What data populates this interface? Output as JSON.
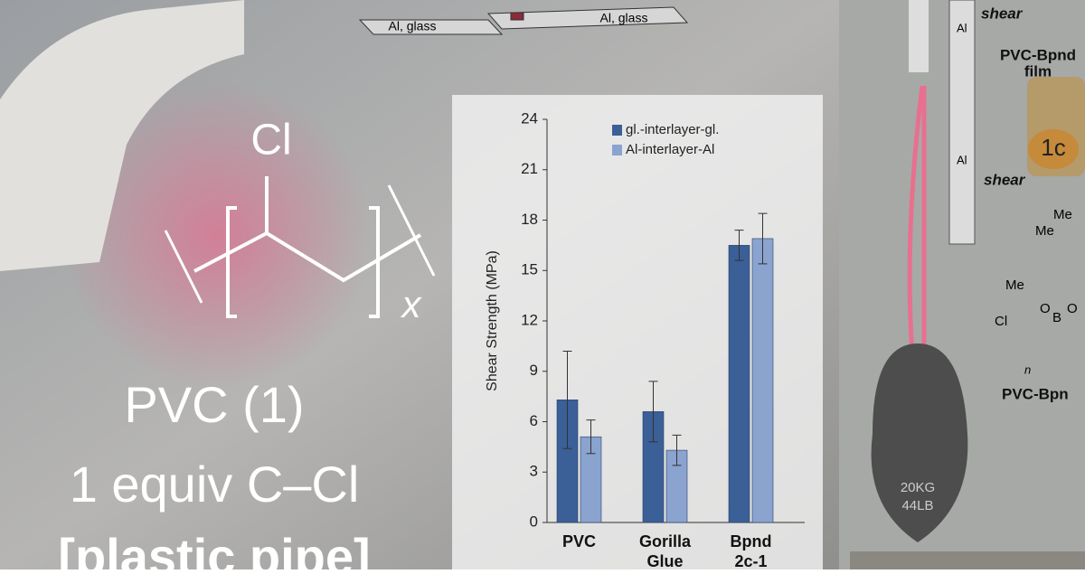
{
  "header": {
    "left_plate": "Al, glass",
    "right_plate": "Al, glass"
  },
  "structure": {
    "atom": "Cl",
    "repeat": "x",
    "name": "PVC (1)",
    "equiv": "1 equiv C–Cl",
    "use": "[plastic pipe]"
  },
  "chart_data": {
    "type": "bar",
    "ylabel": "Shear Strength (MPa)",
    "categories": [
      "PVC",
      "Gorilla Glue",
      "Bpnd 2c-1"
    ],
    "series": [
      {
        "name": "gl.-interlayer-gl.",
        "color": "#3b5f97",
        "values": [
          7.3,
          6.6,
          16.5
        ],
        "errors": [
          2.9,
          1.8,
          0.9
        ]
      },
      {
        "name": "Al-interlayer-Al",
        "color": "#8aa3cf",
        "values": [
          5.1,
          4.3,
          16.9
        ],
        "errors": [
          1.0,
          0.9,
          1.5
        ]
      }
    ],
    "ylim": [
      0,
      24
    ],
    "yticks": [
      0,
      3,
      6,
      9,
      12,
      15,
      18,
      21,
      24
    ],
    "legend": "upper-left"
  },
  "photo": {
    "shear_top": "shear",
    "al_top": "Al",
    "film_1": "PVC-Bpnd",
    "film_2": "film",
    "al_bottom": "Al",
    "shear_bottom": "shear",
    "sample": "1c",
    "me_1": "Me",
    "me_2": "Me",
    "me_3": "Me",
    "o_1": "O",
    "b": "B",
    "o_2": "O",
    "cl": "Cl",
    "n": "n",
    "polymer": "PVC-Bpn",
    "kg": "20KG",
    "lb": "44LB"
  }
}
